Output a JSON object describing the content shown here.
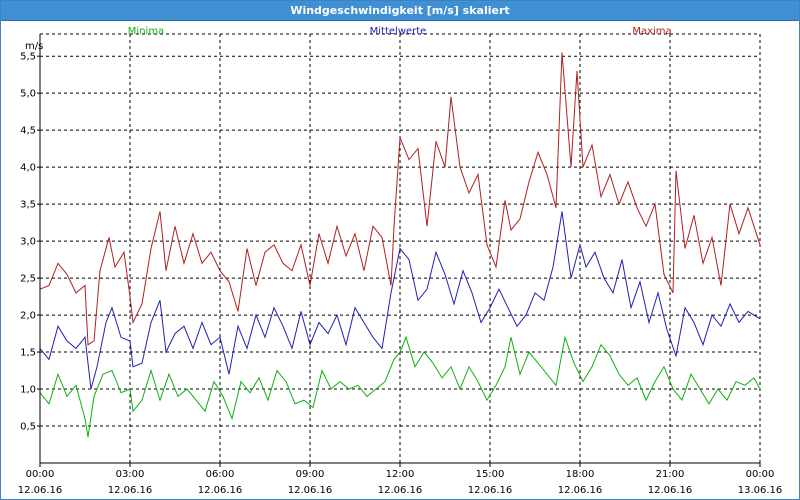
{
  "window": {
    "title": "Windgeschwindigkeit [m/s] skaliert"
  },
  "chart_data": {
    "type": "line",
    "title": "Windgeschwindigkeit [m/s] skaliert",
    "ylabel": "m/s",
    "xlabel": "",
    "ylim": [
      0,
      5.8
    ],
    "xlim": [
      0,
      24
    ],
    "x_unit": "hours since 12.06.16 00:00",
    "grid": true,
    "legend_placement": "top",
    "yticks": [
      {
        "v": 0.5,
        "label": "0,5"
      },
      {
        "v": 1.0,
        "label": "1,0"
      },
      {
        "v": 1.5,
        "label": "1,5"
      },
      {
        "v": 2.0,
        "label": "2,0"
      },
      {
        "v": 2.5,
        "label": "2,5"
      },
      {
        "v": 3.0,
        "label": "3,0"
      },
      {
        "v": 3.5,
        "label": "3,5"
      },
      {
        "v": 4.0,
        "label": "4,0"
      },
      {
        "v": 4.5,
        "label": "4,5"
      },
      {
        "v": 5.0,
        "label": "5,0"
      },
      {
        "v": 5.5,
        "label": "5,5"
      }
    ],
    "xticks": [
      {
        "v": 0,
        "time": "00:00",
        "date": "12.06.16"
      },
      {
        "v": 3,
        "time": "03:00",
        "date": "12.06.16"
      },
      {
        "v": 6,
        "time": "06:00",
        "date": "12.06.16"
      },
      {
        "v": 9,
        "time": "09:00",
        "date": "12.06.16"
      },
      {
        "v": 12,
        "time": "12:00",
        "date": "12.06.16"
      },
      {
        "v": 15,
        "time": "15:00",
        "date": "12.06.16"
      },
      {
        "v": 18,
        "time": "18:00",
        "date": "12.06.16"
      },
      {
        "v": 21,
        "time": "21:00",
        "date": "12.06.16"
      },
      {
        "v": 24,
        "time": "00:00",
        "date": "13.06.16"
      }
    ],
    "series": [
      {
        "name": "Minima",
        "color": "#10b010",
        "legend_pos": "left",
        "points": [
          [
            0,
            0.95
          ],
          [
            0.3,
            0.8
          ],
          [
            0.6,
            1.2
          ],
          [
            0.9,
            0.9
          ],
          [
            1.2,
            1.05
          ],
          [
            1.5,
            0.6
          ],
          [
            1.6,
            0.35
          ],
          [
            1.8,
            0.9
          ],
          [
            2.1,
            1.2
          ],
          [
            2.4,
            1.25
          ],
          [
            2.7,
            0.95
          ],
          [
            3.0,
            1.0
          ],
          [
            3.1,
            0.7
          ],
          [
            3.4,
            0.85
          ],
          [
            3.7,
            1.25
          ],
          [
            4.0,
            0.85
          ],
          [
            4.3,
            1.2
          ],
          [
            4.6,
            0.9
          ],
          [
            4.9,
            1.0
          ],
          [
            5.2,
            0.85
          ],
          [
            5.5,
            0.7
          ],
          [
            5.8,
            1.1
          ],
          [
            6.1,
            0.9
          ],
          [
            6.4,
            0.6
          ],
          [
            6.7,
            1.1
          ],
          [
            7.0,
            0.95
          ],
          [
            7.3,
            1.15
          ],
          [
            7.6,
            0.85
          ],
          [
            7.9,
            1.25
          ],
          [
            8.2,
            1.1
          ],
          [
            8.5,
            0.8
          ],
          [
            8.8,
            0.85
          ],
          [
            9.1,
            0.75
          ],
          [
            9.4,
            1.25
          ],
          [
            9.7,
            1.0
          ],
          [
            10.0,
            1.1
          ],
          [
            10.3,
            1.0
          ],
          [
            10.6,
            1.05
          ],
          [
            10.9,
            0.9
          ],
          [
            11.2,
            1.0
          ],
          [
            11.5,
            1.1
          ],
          [
            11.8,
            1.4
          ],
          [
            12.0,
            1.5
          ],
          [
            12.2,
            1.7
          ],
          [
            12.5,
            1.3
          ],
          [
            12.8,
            1.5
          ],
          [
            13.1,
            1.35
          ],
          [
            13.4,
            1.15
          ],
          [
            13.7,
            1.3
          ],
          [
            14.0,
            1.0
          ],
          [
            14.3,
            1.3
          ],
          [
            14.6,
            1.1
          ],
          [
            14.9,
            0.85
          ],
          [
            15.2,
            1.05
          ],
          [
            15.5,
            1.3
          ],
          [
            15.7,
            1.7
          ],
          [
            16.0,
            1.2
          ],
          [
            16.3,
            1.5
          ],
          [
            16.6,
            1.35
          ],
          [
            16.9,
            1.2
          ],
          [
            17.2,
            1.05
          ],
          [
            17.5,
            1.7
          ],
          [
            17.8,
            1.35
          ],
          [
            18.1,
            1.1
          ],
          [
            18.4,
            1.3
          ],
          [
            18.7,
            1.6
          ],
          [
            19.0,
            1.45
          ],
          [
            19.3,
            1.2
          ],
          [
            19.6,
            1.05
          ],
          [
            19.9,
            1.15
          ],
          [
            20.2,
            0.85
          ],
          [
            20.5,
            1.1
          ],
          [
            20.8,
            1.3
          ],
          [
            21.1,
            1.0
          ],
          [
            21.4,
            0.85
          ],
          [
            21.7,
            1.2
          ],
          [
            22.0,
            1.0
          ],
          [
            22.3,
            0.8
          ],
          [
            22.6,
            1.0
          ],
          [
            22.9,
            0.85
          ],
          [
            23.2,
            1.1
          ],
          [
            23.5,
            1.05
          ],
          [
            23.8,
            1.15
          ],
          [
            24.0,
            1.0
          ]
        ]
      },
      {
        "name": "Mittelwerte",
        "color": "#2020b0",
        "legend_pos": "center",
        "points": [
          [
            0,
            1.55
          ],
          [
            0.3,
            1.4
          ],
          [
            0.6,
            1.85
          ],
          [
            0.9,
            1.65
          ],
          [
            1.2,
            1.55
          ],
          [
            1.5,
            1.7
          ],
          [
            1.7,
            1.0
          ],
          [
            1.9,
            1.3
          ],
          [
            2.2,
            1.9
          ],
          [
            2.4,
            2.1
          ],
          [
            2.7,
            1.7
          ],
          [
            3.0,
            1.65
          ],
          [
            3.1,
            1.3
          ],
          [
            3.4,
            1.35
          ],
          [
            3.7,
            1.9
          ],
          [
            4.0,
            2.2
          ],
          [
            4.2,
            1.5
          ],
          [
            4.5,
            1.75
          ],
          [
            4.8,
            1.85
          ],
          [
            5.1,
            1.55
          ],
          [
            5.4,
            1.9
          ],
          [
            5.7,
            1.6
          ],
          [
            6.0,
            1.7
          ],
          [
            6.3,
            1.2
          ],
          [
            6.6,
            1.85
          ],
          [
            6.9,
            1.55
          ],
          [
            7.2,
            2.0
          ],
          [
            7.5,
            1.7
          ],
          [
            7.8,
            2.1
          ],
          [
            8.1,
            1.85
          ],
          [
            8.4,
            1.55
          ],
          [
            8.7,
            2.05
          ],
          [
            9.0,
            1.6
          ],
          [
            9.3,
            1.9
          ],
          [
            9.6,
            1.75
          ],
          [
            9.9,
            2.0
          ],
          [
            10.2,
            1.6
          ],
          [
            10.5,
            2.1
          ],
          [
            10.8,
            1.9
          ],
          [
            11.1,
            1.7
          ],
          [
            11.4,
            1.55
          ],
          [
            11.7,
            2.3
          ],
          [
            12.0,
            2.9
          ],
          [
            12.3,
            2.75
          ],
          [
            12.6,
            2.2
          ],
          [
            12.9,
            2.35
          ],
          [
            13.2,
            2.85
          ],
          [
            13.5,
            2.55
          ],
          [
            13.8,
            2.15
          ],
          [
            14.1,
            2.6
          ],
          [
            14.4,
            2.3
          ],
          [
            14.7,
            1.9
          ],
          [
            15.0,
            2.1
          ],
          [
            15.3,
            2.35
          ],
          [
            15.6,
            2.1
          ],
          [
            15.9,
            1.85
          ],
          [
            16.2,
            2.0
          ],
          [
            16.5,
            2.3
          ],
          [
            16.8,
            2.2
          ],
          [
            17.1,
            2.65
          ],
          [
            17.4,
            3.4
          ],
          [
            17.7,
            2.5
          ],
          [
            18.0,
            2.95
          ],
          [
            18.2,
            2.65
          ],
          [
            18.5,
            2.85
          ],
          [
            18.8,
            2.5
          ],
          [
            19.1,
            2.3
          ],
          [
            19.4,
            2.75
          ],
          [
            19.7,
            2.1
          ],
          [
            20.0,
            2.45
          ],
          [
            20.3,
            1.9
          ],
          [
            20.6,
            2.3
          ],
          [
            20.9,
            1.8
          ],
          [
            21.2,
            1.45
          ],
          [
            21.5,
            2.1
          ],
          [
            21.8,
            1.9
          ],
          [
            22.1,
            1.6
          ],
          [
            22.4,
            2.0
          ],
          [
            22.7,
            1.85
          ],
          [
            23.0,
            2.15
          ],
          [
            23.3,
            1.9
          ],
          [
            23.6,
            2.05
          ],
          [
            24.0,
            1.95
          ]
        ]
      },
      {
        "name": "Maxima",
        "color": "#b02020",
        "legend_pos": "right",
        "points": [
          [
            0,
            2.35
          ],
          [
            0.3,
            2.4
          ],
          [
            0.6,
            2.7
          ],
          [
            0.9,
            2.55
          ],
          [
            1.2,
            2.3
          ],
          [
            1.5,
            2.4
          ],
          [
            1.6,
            1.6
          ],
          [
            1.8,
            1.65
          ],
          [
            2.0,
            2.6
          ],
          [
            2.3,
            3.05
          ],
          [
            2.5,
            2.65
          ],
          [
            2.8,
            2.85
          ],
          [
            3.0,
            2.25
          ],
          [
            3.1,
            1.9
          ],
          [
            3.4,
            2.15
          ],
          [
            3.7,
            2.9
          ],
          [
            4.0,
            3.4
          ],
          [
            4.2,
            2.6
          ],
          [
            4.5,
            3.2
          ],
          [
            4.8,
            2.7
          ],
          [
            5.1,
            3.1
          ],
          [
            5.4,
            2.7
          ],
          [
            5.7,
            2.85
          ],
          [
            6.0,
            2.6
          ],
          [
            6.3,
            2.45
          ],
          [
            6.6,
            2.05
          ],
          [
            6.9,
            2.9
          ],
          [
            7.2,
            2.4
          ],
          [
            7.5,
            2.85
          ],
          [
            7.8,
            2.95
          ],
          [
            8.1,
            2.7
          ],
          [
            8.4,
            2.6
          ],
          [
            8.7,
            2.95
          ],
          [
            9.0,
            2.4
          ],
          [
            9.3,
            3.1
          ],
          [
            9.6,
            2.7
          ],
          [
            9.9,
            3.2
          ],
          [
            10.2,
            2.8
          ],
          [
            10.5,
            3.1
          ],
          [
            10.8,
            2.6
          ],
          [
            11.1,
            3.2
          ],
          [
            11.4,
            3.05
          ],
          [
            11.7,
            2.4
          ],
          [
            11.8,
            3.2
          ],
          [
            12.0,
            4.4
          ],
          [
            12.3,
            4.1
          ],
          [
            12.6,
            4.25
          ],
          [
            12.9,
            3.2
          ],
          [
            13.2,
            4.35
          ],
          [
            13.5,
            4.0
          ],
          [
            13.7,
            4.95
          ],
          [
            14.0,
            4.0
          ],
          [
            14.3,
            3.65
          ],
          [
            14.6,
            3.9
          ],
          [
            14.9,
            2.95
          ],
          [
            15.2,
            2.65
          ],
          [
            15.5,
            3.55
          ],
          [
            15.7,
            3.15
          ],
          [
            16.0,
            3.3
          ],
          [
            16.3,
            3.8
          ],
          [
            16.6,
            4.2
          ],
          [
            16.9,
            3.9
          ],
          [
            17.2,
            3.45
          ],
          [
            17.4,
            5.55
          ],
          [
            17.7,
            4.0
          ],
          [
            17.9,
            5.3
          ],
          [
            18.1,
            4.0
          ],
          [
            18.4,
            4.3
          ],
          [
            18.7,
            3.6
          ],
          [
            19.0,
            3.9
          ],
          [
            19.3,
            3.5
          ],
          [
            19.6,
            3.8
          ],
          [
            19.9,
            3.45
          ],
          [
            20.2,
            3.2
          ],
          [
            20.5,
            3.5
          ],
          [
            20.8,
            2.55
          ],
          [
            21.1,
            2.3
          ],
          [
            21.2,
            3.95
          ],
          [
            21.5,
            2.9
          ],
          [
            21.8,
            3.35
          ],
          [
            22.1,
            2.7
          ],
          [
            22.4,
            3.05
          ],
          [
            22.7,
            2.4
          ],
          [
            23.0,
            3.5
          ],
          [
            23.3,
            3.1
          ],
          [
            23.6,
            3.45
          ],
          [
            24.0,
            2.95
          ]
        ]
      }
    ]
  }
}
